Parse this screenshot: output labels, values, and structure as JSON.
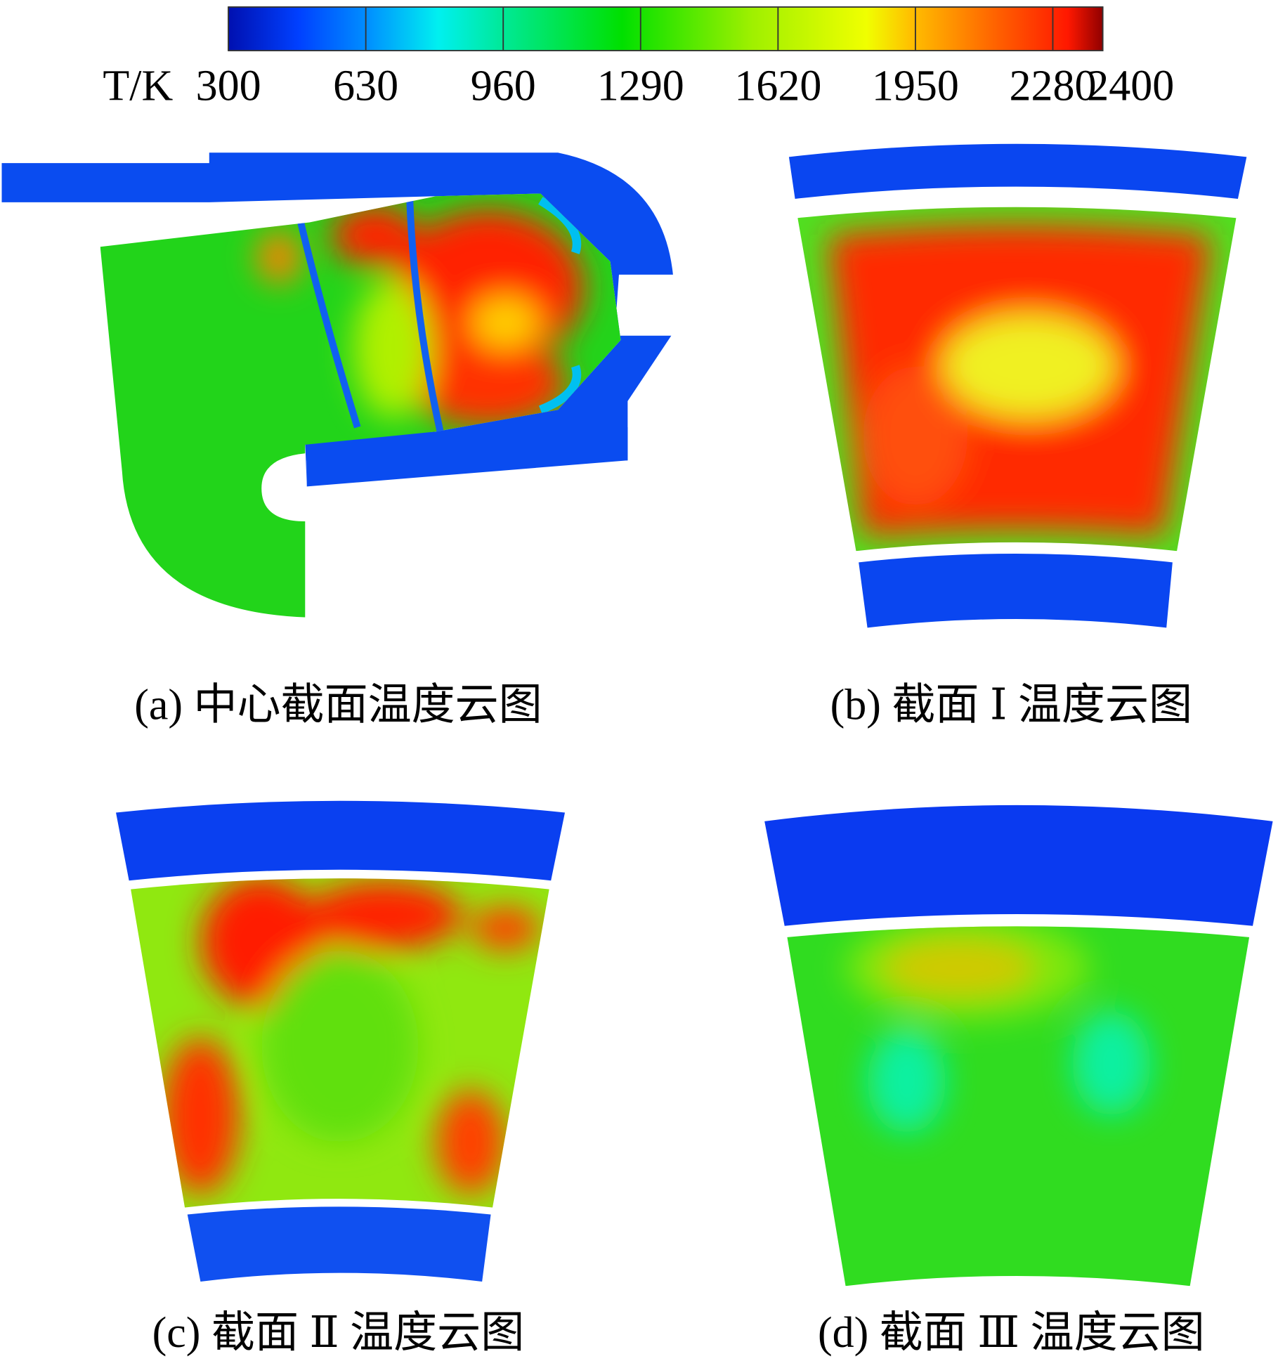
{
  "colorbar": {
    "label": "T/K",
    "ticks": [
      300,
      630,
      960,
      1290,
      1620,
      1950,
      2280,
      2400
    ]
  },
  "captions": [
    "(a) 中心截面温度云图",
    "(b) 截面 Ⅰ 温度云图",
    "(c) 截面 Ⅱ 温度云图",
    "(d) 截面 Ⅲ 温度云图"
  ]
}
